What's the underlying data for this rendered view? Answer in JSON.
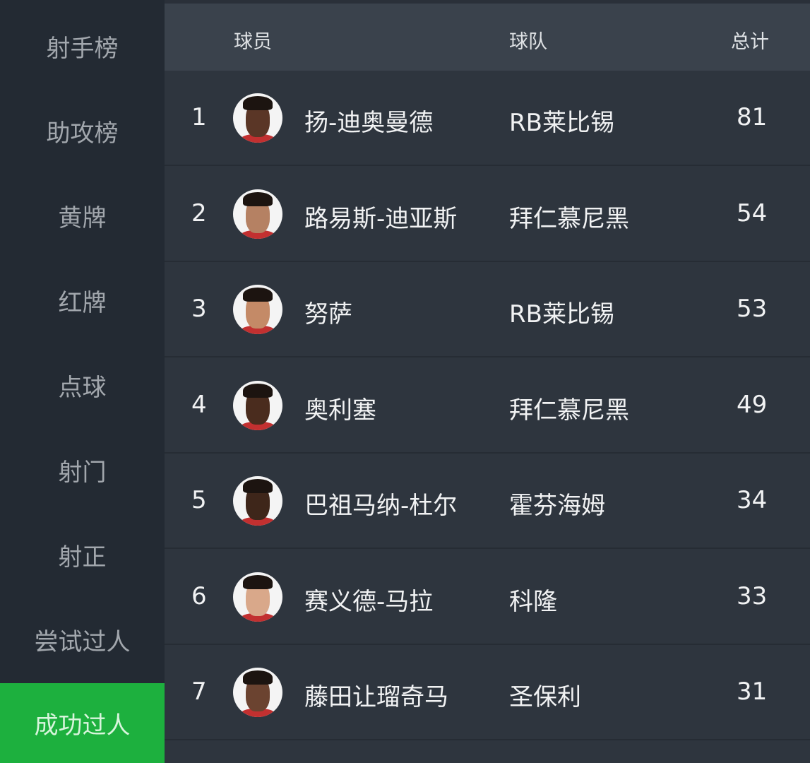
{
  "sidebar": {
    "items": [
      {
        "label": "射手榜",
        "active": false
      },
      {
        "label": "助攻榜",
        "active": false
      },
      {
        "label": "黄牌",
        "active": false
      },
      {
        "label": "红牌",
        "active": false
      },
      {
        "label": "点球",
        "active": false
      },
      {
        "label": "射门",
        "active": false
      },
      {
        "label": "射正",
        "active": false
      },
      {
        "label": "尝试过人",
        "active": false
      },
      {
        "label": "成功过人",
        "active": true
      }
    ],
    "active_color": "#1db03e"
  },
  "table": {
    "headers": {
      "player": "球员",
      "team": "球队",
      "total": "总计"
    },
    "rows": [
      {
        "rank": "1",
        "player": "扬-迪奥曼德",
        "team": "RB莱比锡",
        "total": "81"
      },
      {
        "rank": "2",
        "player": "路易斯-迪亚斯",
        "team": "拜仁慕尼黑",
        "total": "54"
      },
      {
        "rank": "3",
        "player": "努萨",
        "team": "RB莱比锡",
        "total": "53"
      },
      {
        "rank": "4",
        "player": "奥利塞",
        "team": "拜仁慕尼黑",
        "total": "49"
      },
      {
        "rank": "5",
        "player": "巴祖马纳-杜尔",
        "team": "霍芬海姆",
        "total": "34"
      },
      {
        "rank": "6",
        "player": "赛义德-马拉",
        "team": "科隆",
        "total": "33"
      },
      {
        "rank": "7",
        "player": "藤田让瑠奇马",
        "team": "圣保利",
        "total": "31"
      }
    ]
  }
}
